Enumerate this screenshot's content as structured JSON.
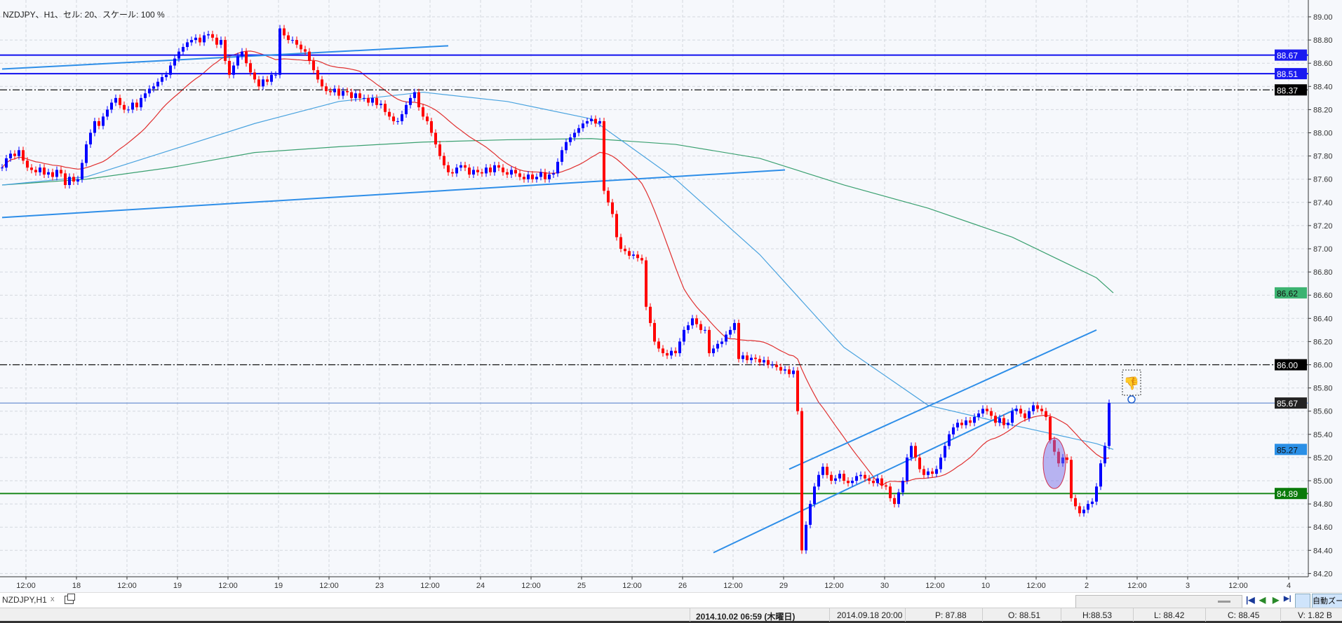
{
  "header": {
    "title": "NZDJPY、H1、セル: 20、スケール: 100 %"
  },
  "tab": {
    "label": "NZDJPY,H1",
    "close": "x"
  },
  "navigation": {
    "first": "|◀",
    "prev": "◀",
    "next": "▶",
    "last": "▶|",
    "auto_zoom": "自動ズーム"
  },
  "status": {
    "datetime": "2014.10.02 06:59 (木曜日)",
    "cursor_time": "2014.09.18 20:00",
    "p": "P: 87.88",
    "o": "O: 88.51",
    "h": "H:88.53",
    "l": "L: 88.42",
    "c": "C: 88.45",
    "v": "V: 1.82 B"
  },
  "chart_data": {
    "type": "candlestick",
    "symbol": "NZDJPY",
    "timeframe": "H1",
    "ylim": [
      84.2,
      89.0
    ],
    "y_ticks": [
      "89.00",
      "88.80",
      "88.60",
      "88.40",
      "88.20",
      "88.00",
      "87.80",
      "87.60",
      "87.40",
      "87.20",
      "87.00",
      "86.80",
      "86.60",
      "86.40",
      "86.20",
      "86.00",
      "85.80",
      "85.60",
      "85.40",
      "85.20",
      "85.00",
      "84.80",
      "84.60",
      "84.40",
      "84.20"
    ],
    "x_ticks": [
      "12:00",
      "18",
      "12:00",
      "19",
      "12:00",
      "19",
      "12:00",
      "23",
      "12:00",
      "24",
      "12:00",
      "25",
      "12:00",
      "26",
      "12:00",
      "29",
      "12:00",
      "30",
      "12:00",
      "10",
      "12:00",
      "2",
      "12:00",
      "3",
      "12:00",
      "4"
    ],
    "grid": true,
    "colors": {
      "up": "#0000ff",
      "down": "#ff0000",
      "ma_fast": "#e03030",
      "ma_mid": "#4aa3df",
      "ma_slow": "#3aa070",
      "trendline": "#2e8ee8"
    },
    "closes": [
      87.7,
      87.78,
      87.82,
      87.8,
      87.85,
      87.76,
      87.7,
      87.68,
      87.66,
      87.7,
      87.64,
      87.66,
      87.62,
      87.68,
      87.65,
      87.55,
      87.62,
      87.58,
      87.6,
      87.74,
      87.9,
      88.0,
      88.1,
      88.06,
      88.14,
      88.2,
      88.26,
      88.3,
      88.24,
      88.2,
      88.2,
      88.26,
      88.22,
      88.3,
      88.34,
      88.38,
      88.4,
      88.44,
      88.48,
      88.5,
      88.58,
      88.64,
      88.7,
      88.74,
      88.78,
      88.8,
      88.82,
      88.78,
      88.84,
      88.85,
      88.82,
      88.76,
      88.8,
      88.62,
      88.5,
      88.58,
      88.66,
      88.7,
      88.6,
      88.52,
      88.46,
      88.4,
      88.46,
      88.44,
      88.5,
      88.5,
      88.9,
      88.84,
      88.8,
      88.8,
      88.76,
      88.72,
      88.7,
      88.62,
      88.54,
      88.46,
      88.4,
      88.36,
      88.35,
      88.38,
      88.32,
      88.36,
      88.35,
      88.3,
      88.34,
      88.3,
      88.3,
      88.26,
      88.3,
      88.24,
      88.25,
      88.18,
      88.14,
      88.1,
      88.1,
      88.16,
      88.24,
      88.3,
      88.35,
      88.22,
      88.14,
      88.1,
      88.0,
      87.9,
      87.8,
      87.72,
      87.66,
      87.65,
      87.7,
      87.72,
      87.7,
      87.64,
      87.68,
      87.66,
      87.65,
      87.7,
      87.66,
      87.72,
      87.7,
      87.66,
      87.64,
      87.68,
      87.65,
      87.62,
      87.6,
      87.64,
      87.6,
      87.62,
      87.66,
      87.6,
      87.64,
      87.65,
      87.75,
      87.85,
      87.92,
      87.96,
      88.0,
      88.04,
      88.08,
      88.1,
      88.12,
      88.08,
      88.1,
      87.5,
      87.4,
      87.3,
      87.1,
      87.0,
      86.98,
      86.94,
      86.95,
      86.92,
      86.9,
      86.5,
      86.36,
      86.2,
      86.14,
      86.1,
      86.08,
      86.12,
      86.1,
      86.2,
      86.3,
      86.34,
      86.4,
      86.35,
      86.3,
      86.3,
      86.1,
      86.14,
      86.18,
      86.2,
      86.26,
      86.3,
      86.36,
      86.05,
      86.08,
      86.04,
      86.06,
      86.05,
      86.02,
      86.04,
      86.0,
      86.0,
      85.98,
      85.95,
      85.96,
      85.92,
      85.95,
      85.6,
      84.4,
      84.62,
      84.8,
      84.95,
      85.05,
      85.12,
      85.05,
      85.0,
      85.02,
      85.06,
      85.0,
      84.98,
      85.0,
      85.04,
      85.05,
      85.02,
      85.0,
      84.98,
      85.02,
      84.96,
      84.95,
      84.85,
      84.8,
      84.9,
      85.0,
      85.2,
      85.3,
      85.2,
      85.1,
      85.05,
      85.08,
      85.06,
      85.1,
      85.2,
      85.3,
      85.4,
      85.46,
      85.5,
      85.48,
      85.52,
      85.5,
      85.55,
      85.58,
      85.62,
      85.6,
      85.56,
      85.5,
      85.54,
      85.48,
      85.5,
      85.6,
      85.62,
      85.58,
      85.54,
      85.6,
      85.65,
      85.62,
      85.6,
      85.55,
      85.35,
      85.25,
      85.15,
      85.2,
      85.18,
      84.85,
      84.78,
      84.72,
      84.75,
      84.8,
      84.82,
      84.95,
      85.15,
      85.3,
      85.67
    ],
    "ma_mid": [
      87.55,
      87.62,
      87.85,
      88.08,
      88.27,
      88.35,
      88.27,
      88.12,
      87.6,
      86.95,
      86.15,
      85.65,
      85.48,
      85.32,
      85.27
    ],
    "ma_slow": [
      87.55,
      87.6,
      87.7,
      87.83,
      87.88,
      87.92,
      87.94,
      87.95,
      87.9,
      87.78,
      87.55,
      87.35,
      87.1,
      86.75,
      86.62
    ],
    "horizontal_lines": [
      {
        "price": 88.67,
        "label": "88.67",
        "style": "solid",
        "color": "#1010ee",
        "label_bg": "#1a1af0",
        "label_fg": "#ffffff"
      },
      {
        "price": 88.51,
        "label": "88.51",
        "style": "solid",
        "color": "#1010ee",
        "label_bg": "#1a1af0",
        "label_fg": "#ffffff"
      },
      {
        "price": 88.37,
        "label": "88.37",
        "style": "dashdot",
        "color": "#111111",
        "label_bg": "#000000",
        "label_fg": "#ffffff"
      },
      {
        "price": 86.0,
        "label": "86.00",
        "style": "dashdot",
        "color": "#111111",
        "label_bg": "#000000",
        "label_fg": "#ffffff"
      },
      {
        "price": 85.67,
        "label": "85.67",
        "style": "thin",
        "color": "#4a78c8",
        "label_bg": "#222222",
        "label_fg": "#ffffff"
      },
      {
        "price": 84.89,
        "label": "84.89",
        "style": "green",
        "color": "#1e8a1e",
        "label_bg": "#0a7a0a",
        "label_fg": "#ffffff"
      }
    ],
    "value_labels": [
      {
        "label": "86.62",
        "price": 86.62,
        "label_bg": "#3cb371",
        "label_fg": "#111111"
      },
      {
        "label": "85.27",
        "price": 85.27,
        "label_bg": "#2a8fe6",
        "label_fg": "#111111"
      }
    ],
    "trendlines": [
      {
        "from": [
          "17 00:00",
          88.55
        ],
        "to": [
          "21 10:00",
          88.75
        ]
      },
      {
        "from": [
          "17 00:00",
          87.27
        ],
        "to": [
          "29 18:00",
          87.68
        ]
      },
      {
        "from": [
          "29 19:00",
          85.1
        ],
        "to": [
          "2 20:00",
          86.3
        ]
      },
      {
        "from": [
          "29 01:00",
          84.38
        ],
        "to": [
          "2 01:00",
          85.62
        ]
      }
    ]
  }
}
